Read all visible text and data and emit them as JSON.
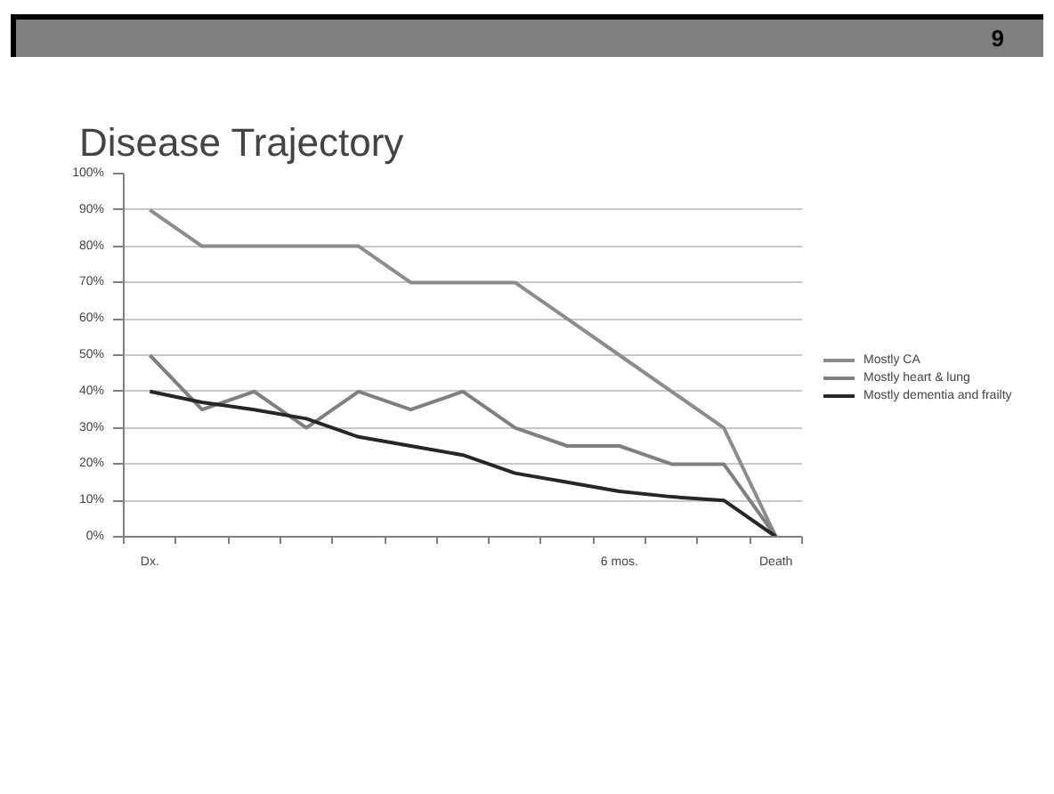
{
  "chart_data": {
    "type": "line",
    "title": "Disease Trajectory",
    "annotations": [
      "9"
    ],
    "categories": [
      "Dx.",
      null,
      null,
      null,
      null,
      null,
      null,
      null,
      null,
      "6 mos.",
      null,
      null,
      "Death"
    ],
    "series": [
      {
        "name": "Mostly CA",
        "color": "#8c8c8c",
        "values": [
          90,
          80,
          80,
          80,
          80,
          70,
          70,
          70,
          60,
          50,
          40,
          30,
          0
        ]
      },
      {
        "name": "Mostly heart & lung",
        "color": "#7f7f7f",
        "values": [
          50,
          35,
          40,
          30,
          40,
          35,
          40,
          30,
          25,
          25,
          20,
          20,
          0
        ]
      },
      {
        "name": "Mostly dementia and frailty",
        "color": "#262626",
        "values": [
          40,
          37,
          35,
          32.5,
          27.5,
          25,
          22.5,
          17.5,
          15,
          12.5,
          11,
          10,
          0
        ]
      }
    ],
    "ylim": [
      0,
      100
    ],
    "yticks": [
      {
        "value": 0,
        "label": "0%"
      },
      {
        "value": 10,
        "label": "10%"
      },
      {
        "value": 20,
        "label": "20%"
      },
      {
        "value": 30,
        "label": "30%"
      },
      {
        "value": 40,
        "label": "40%"
      },
      {
        "value": 50,
        "label": "50%"
      },
      {
        "value": 60,
        "label": "60%"
      },
      {
        "value": 70,
        "label": "70%"
      },
      {
        "value": 80,
        "label": "80%"
      },
      {
        "value": 90,
        "label": "90%"
      },
      {
        "value": 100,
        "label": "100%"
      }
    ],
    "grid": "y",
    "legend": "right",
    "marker": "none",
    "line_style": "solid"
  }
}
